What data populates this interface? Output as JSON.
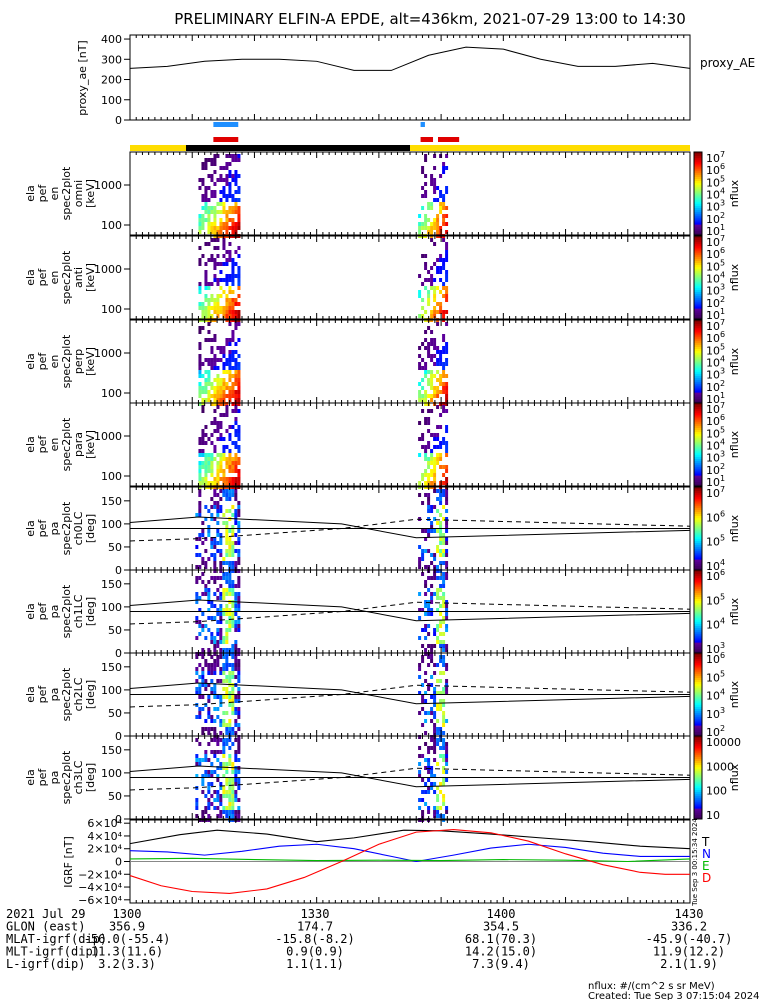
{
  "title": "PRELIMINARY ELFIN-A EPDE, alt=436km, 2021-07-29 13:00 to 14:30",
  "colors": {
    "yellow": "#ffdd00",
    "black": "#000000",
    "blue_bar": "#1f8fff",
    "red_bar": "#e00000"
  },
  "chart_data": [
    {
      "type": "line",
      "panel": "proxy_ae",
      "ylabel": "proxy_ae [nT]",
      "side_label": "proxy_AE",
      "ylim": [
        0,
        420
      ],
      "yticks": [
        "400",
        "300",
        "200",
        "100",
        "0"
      ],
      "x_minutes": [
        0,
        6,
        12,
        18,
        24,
        30,
        36,
        42,
        48,
        54,
        60,
        66,
        72,
        78,
        84,
        90
      ],
      "values": [
        255,
        265,
        290,
        300,
        300,
        290,
        245,
        245,
        320,
        360,
        350,
        300,
        265,
        265,
        280,
        255
      ]
    },
    {
      "type": "timeline",
      "panel": "science_zones",
      "blue_segments": [
        [
          13.4,
          17.4
        ],
        [
          46.7,
          47.4
        ]
      ],
      "red_segments": [
        [
          13.4,
          17.4
        ],
        [
          46.7,
          48.7
        ],
        [
          49.5,
          52.9
        ]
      ],
      "bar_segments": [
        [
          "yellow",
          0,
          9.0
        ],
        [
          "black",
          9.0,
          45.0
        ],
        [
          "yellow",
          45.0,
          90
        ]
      ]
    },
    {
      "type": "heatmap",
      "panel": "omni",
      "ylabel": [
        "ela",
        "pef",
        "en",
        "spec2plot",
        "omni",
        "[keV]"
      ],
      "yticks": [
        "1000",
        "100"
      ],
      "colorbar": {
        "label": "nflux",
        "ticks": [
          "10^7",
          "10^6",
          "10^5",
          "10^4",
          "10^3",
          "10^2",
          "10^1"
        ]
      },
      "bursts": [
        [
          11,
          17.6
        ],
        [
          46.3,
          51
        ]
      ]
    },
    {
      "type": "heatmap",
      "panel": "anti",
      "ylabel": [
        "ela",
        "pef",
        "en",
        "spec2plot",
        "anti",
        "[keV]"
      ],
      "yticks": [
        "1000",
        "100"
      ],
      "colorbar": {
        "label": "nflux",
        "ticks": [
          "10^7",
          "10^6",
          "10^5",
          "10^4",
          "10^3",
          "10^2",
          "10^1"
        ]
      },
      "bursts": [
        [
          11,
          17.6
        ],
        [
          46.3,
          51
        ]
      ]
    },
    {
      "type": "heatmap",
      "panel": "perp",
      "ylabel": [
        "ela",
        "pef",
        "en",
        "spec2plot",
        "perp",
        "[keV]"
      ],
      "yticks": [
        "1000",
        "100"
      ],
      "colorbar": {
        "label": "nflux",
        "ticks": [
          "10^7",
          "10^6",
          "10^5",
          "10^4",
          "10^3",
          "10^2",
          "10^1"
        ]
      },
      "bursts": [
        [
          11,
          17.6
        ],
        [
          46.3,
          51
        ]
      ]
    },
    {
      "type": "heatmap",
      "panel": "para",
      "ylabel": [
        "ela",
        "pef",
        "en",
        "spec2plot",
        "para",
        "[keV]"
      ],
      "yticks": [
        "1000",
        "100"
      ],
      "colorbar": {
        "label": "nflux",
        "ticks": [
          "10^7",
          "10^6",
          "10^5",
          "10^4",
          "10^3",
          "10^2",
          "10^1"
        ]
      },
      "bursts": [
        [
          11,
          17.6
        ],
        [
          46.3,
          51
        ]
      ]
    },
    {
      "type": "heatmap",
      "panel": "ch0LC",
      "ylabel": [
        "ela",
        "pef",
        "pa",
        "spec2plot",
        "ch0LC",
        "[deg]"
      ],
      "yticks": [
        "150",
        "100",
        "50",
        "0"
      ],
      "ylim": [
        0,
        180
      ],
      "colorbar": {
        "label": "nflux",
        "ticks": [
          "10^7",
          "10^6",
          "10^5",
          "10^4"
        ]
      },
      "bursts": [
        [
          10.5,
          17.6
        ],
        [
          46.3,
          51
        ]
      ],
      "solid_line": [
        [
          0,
          103
        ],
        [
          11,
          115
        ],
        [
          34,
          100
        ],
        [
          46,
          70
        ],
        [
          90,
          86
        ]
      ],
      "dashed_line": [
        [
          0,
          63
        ],
        [
          11,
          68
        ],
        [
          34,
          90
        ],
        [
          46,
          110
        ],
        [
          90,
          95
        ]
      ],
      "hline": 90
    },
    {
      "type": "heatmap",
      "panel": "ch1LC",
      "ylabel": [
        "ela",
        "pef",
        "pa",
        "spec2plot",
        "ch1LC",
        "[deg]"
      ],
      "yticks": [
        "150",
        "100",
        "50",
        "0"
      ],
      "ylim": [
        0,
        180
      ],
      "colorbar": {
        "label": "nflux",
        "ticks": [
          "10^6",
          "10^5",
          "10^4",
          "10^3"
        ]
      },
      "bursts": [
        [
          10.5,
          17.6
        ],
        [
          46.3,
          51
        ]
      ],
      "solid_line": [
        [
          0,
          103
        ],
        [
          11,
          115
        ],
        [
          34,
          100
        ],
        [
          46,
          70
        ],
        [
          90,
          86
        ]
      ],
      "dashed_line": [
        [
          0,
          63
        ],
        [
          11,
          68
        ],
        [
          34,
          90
        ],
        [
          46,
          110
        ],
        [
          90,
          95
        ]
      ],
      "hline": 90
    },
    {
      "type": "heatmap",
      "panel": "ch2LC",
      "ylabel": [
        "ela",
        "pef",
        "pa",
        "spec2plot",
        "ch2LC",
        "[deg]"
      ],
      "yticks": [
        "150",
        "100",
        "50",
        "0"
      ],
      "ylim": [
        0,
        180
      ],
      "colorbar": {
        "label": "nflux",
        "ticks": [
          "10^6",
          "10^5",
          "10^4",
          "10^3",
          "10^2"
        ]
      },
      "bursts": [
        [
          10.5,
          17.6
        ],
        [
          46.3,
          51
        ]
      ],
      "solid_line": [
        [
          0,
          103
        ],
        [
          11,
          115
        ],
        [
          34,
          100
        ],
        [
          46,
          70
        ],
        [
          90,
          86
        ]
      ],
      "dashed_line": [
        [
          0,
          63
        ],
        [
          11,
          68
        ],
        [
          34,
          90
        ],
        [
          46,
          110
        ],
        [
          90,
          95
        ]
      ],
      "hline": 90
    },
    {
      "type": "heatmap",
      "panel": "ch3LC",
      "ylabel": [
        "ela",
        "pef",
        "pa",
        "spec2plot",
        "ch3LC",
        "[deg]"
      ],
      "yticks": [
        "150",
        "100",
        "50",
        "0"
      ],
      "ylim": [
        0,
        180
      ],
      "colorbar": {
        "label": "nflux",
        "ticks": [
          "10000",
          "1000",
          "100",
          "10"
        ]
      },
      "bursts": [
        [
          10.5,
          17.6
        ],
        [
          46.3,
          51
        ]
      ],
      "solid_line": [
        [
          0,
          103
        ],
        [
          11,
          115
        ],
        [
          34,
          100
        ],
        [
          46,
          70
        ],
        [
          90,
          86
        ]
      ],
      "dashed_line": [
        [
          0,
          63
        ],
        [
          11,
          68
        ],
        [
          34,
          90
        ],
        [
          46,
          110
        ],
        [
          90,
          95
        ]
      ],
      "hline": 90
    },
    {
      "type": "line",
      "panel": "igrf",
      "ylabel": "IGRF [nT]",
      "ylim": [
        -65000,
        65000
      ],
      "yticks": [
        "6×10⁴",
        "4×10⁴",
        "2×10⁴",
        "0",
        "−2×10⁴",
        "−4×10⁴",
        "−6×10⁴"
      ],
      "legend": [
        {
          "label": "T",
          "color": "#000000"
        },
        {
          "label": "N",
          "color": "#0000ff"
        },
        {
          "label": "E",
          "color": "#00bb00"
        },
        {
          "label": "D",
          "color": "#ff0000"
        }
      ],
      "series": [
        {
          "name": "T",
          "color": "#000000",
          "x_minutes": [
            0,
            8,
            14,
            22,
            30,
            36,
            44,
            50,
            58,
            66,
            74,
            82,
            90
          ],
          "values": [
            28000,
            42000,
            49000,
            43000,
            31000,
            37000,
            49000,
            48000,
            43000,
            37000,
            31000,
            24000,
            20000
          ]
        },
        {
          "name": "N",
          "color": "#0000ff",
          "x_minutes": [
            0,
            6,
            12,
            18,
            24,
            30,
            36,
            42,
            46,
            52,
            58,
            64,
            70,
            76,
            82,
            90
          ],
          "values": [
            17000,
            15000,
            10000,
            16000,
            24000,
            27000,
            20000,
            8000,
            0,
            10000,
            21000,
            27000,
            22000,
            13000,
            8000,
            8000
          ]
        },
        {
          "name": "E",
          "color": "#00bb00",
          "x_minutes": [
            0,
            10,
            20,
            30,
            40,
            50,
            60,
            70,
            80,
            90
          ],
          "values": [
            4000,
            5000,
            3000,
            1500,
            2000,
            1500,
            3000,
            2000,
            0,
            4000
          ]
        },
        {
          "name": "D",
          "color": "#ff0000",
          "x_minutes": [
            0,
            5,
            10,
            16,
            22,
            28,
            34,
            40,
            46,
            52,
            58,
            64,
            70,
            76,
            82,
            86,
            90
          ],
          "values": [
            -22000,
            -38000,
            -47000,
            -50000,
            -43000,
            -25000,
            0,
            27000,
            46000,
            50000,
            45000,
            32000,
            12000,
            -5000,
            -17000,
            -20000,
            -20000
          ]
        }
      ],
      "side_stamp": "Tue Sep  3 00:15:34 2024"
    }
  ],
  "bottom_table": {
    "rows": [
      {
        "label": "2021 Jul 29",
        "values": [
          "1300",
          "1330",
          "1400",
          "1430"
        ]
      },
      {
        "label": "GLON (east)",
        "values": [
          "356.9",
          "174.7",
          "354.5",
          "336.2"
        ]
      },
      {
        "label": "MLAT-igrf(dip)",
        "values": [
          "-56.0(-55.4)",
          "-15.8(-8.2)",
          "68.1(70.3)",
          "-45.9(-40.7)"
        ]
      },
      {
        "label": "MLT-igrf(dip)",
        "values": [
          "11.3(11.6)",
          "0.9(0.9)",
          "14.2(15.0)",
          "11.9(12.2)"
        ]
      },
      {
        "label": "L-igrf(dip)",
        "values": [
          "3.2(3.3)",
          "1.1(1.1)",
          "7.3(9.4)",
          "2.1(1.9)"
        ]
      }
    ]
  },
  "footer": {
    "units": "nflux: #/(cm^2 s sr MeV)",
    "created": "Created: Tue Sep  3 07:15:04 2024"
  }
}
